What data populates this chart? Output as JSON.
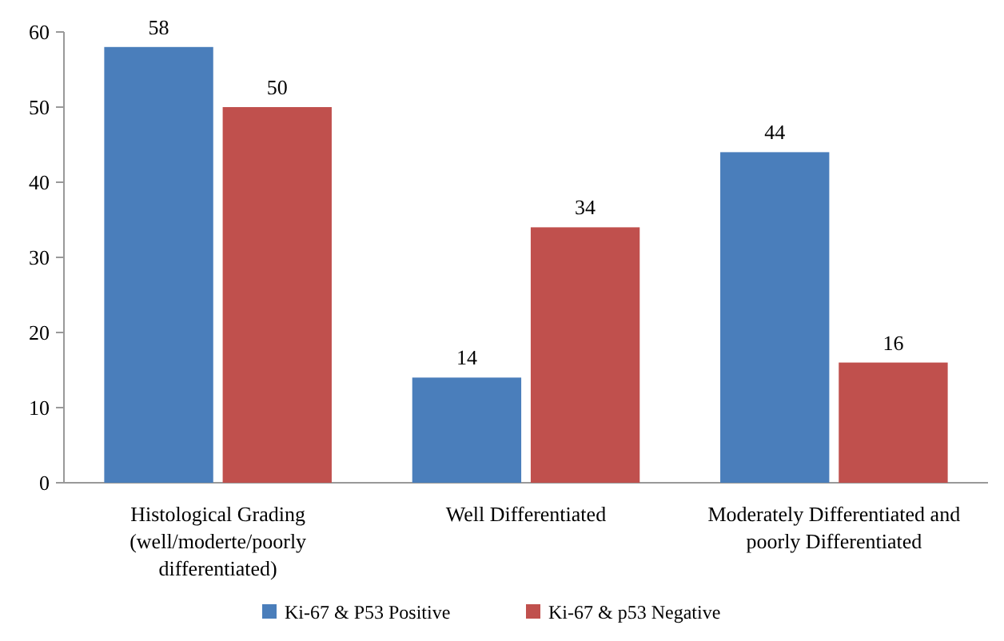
{
  "chart_data": {
    "type": "bar",
    "categories": [
      "Histological Grading (well/moderte/poorly differentiated)",
      "Well Differentiated",
      "Moderately Differentiated and poorly Differentiated"
    ],
    "series": [
      {
        "name": "Ki-67 & P53 Positive",
        "color": "#4a7ebb",
        "values": [
          58,
          14,
          44
        ]
      },
      {
        "name": "Ki-67 & p53 Negative",
        "color": "#c0504d",
        "values": [
          50,
          34,
          16
        ]
      }
    ],
    "ylim": [
      0,
      60
    ],
    "yticks": [
      0,
      10,
      20,
      30,
      40,
      50,
      60
    ],
    "data_labels": true,
    "legend": "bottom",
    "grid": false
  }
}
